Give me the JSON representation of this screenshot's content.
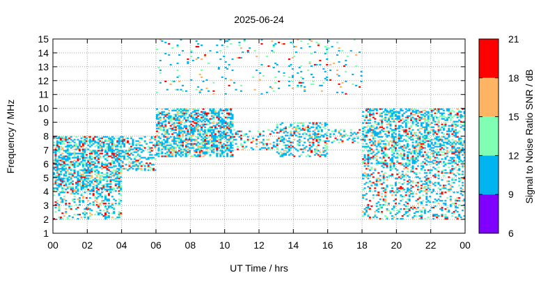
{
  "chart_data": {
    "type": "heatmap",
    "title": "2025-06-24",
    "xlabel": "UT Time / hrs",
    "ylabel": "Frequency / MHz",
    "xlim": [
      0,
      24
    ],
    "ylim": [
      1,
      15
    ],
    "x_tick_labels": [
      "00",
      "02",
      "04",
      "06",
      "08",
      "10",
      "12",
      "14",
      "16",
      "18",
      "20",
      "22",
      "00"
    ],
    "y_ticks": [
      1,
      2,
      3,
      4,
      5,
      6,
      7,
      8,
      9,
      10,
      11,
      12,
      13,
      14,
      15
    ],
    "grid": true,
    "colorbar": {
      "label": "Signal to Noise Ratio SNR / dB",
      "tick_labels": [
        "6",
        "9",
        "12",
        "15",
        "18",
        "21"
      ],
      "bands": [
        {
          "range": [
            6,
            9
          ],
          "color": "#8000ff"
        },
        {
          "range": [
            9,
            12
          ],
          "color": "#00b4f0"
        },
        {
          "range": [
            12,
            15
          ],
          "color": "#80ffb4"
        },
        {
          "range": [
            15,
            18
          ],
          "color": "#ffb464"
        },
        {
          "range": [
            18,
            21
          ],
          "color": "#ff0000"
        }
      ]
    },
    "density_regions": [
      {
        "t": [
          0,
          4
        ],
        "f": [
          4,
          8
        ],
        "density": 0.55
      },
      {
        "t": [
          0,
          4
        ],
        "f": [
          2,
          4
        ],
        "density": 0.25
      },
      {
        "t": [
          4,
          6
        ],
        "f": [
          5.5,
          8
        ],
        "density": 0.35
      },
      {
        "t": [
          6,
          10.5
        ],
        "f": [
          6.5,
          10
        ],
        "density": 0.55
      },
      {
        "t": [
          10.5,
          13
        ],
        "f": [
          7,
          8.5
        ],
        "density": 0.25
      },
      {
        "t": [
          13,
          16
        ],
        "f": [
          6.5,
          9
        ],
        "density": 0.35
      },
      {
        "t": [
          16,
          18
        ],
        "f": [
          7.5,
          8.5
        ],
        "density": 0.25
      },
      {
        "t": [
          18,
          24
        ],
        "f": [
          6,
          10
        ],
        "density": 0.45
      },
      {
        "t": [
          18,
          24
        ],
        "f": [
          2,
          6
        ],
        "density": 0.25
      },
      {
        "t": [
          6,
          18
        ],
        "f": [
          11,
          15
        ],
        "density": 0.05
      }
    ]
  }
}
